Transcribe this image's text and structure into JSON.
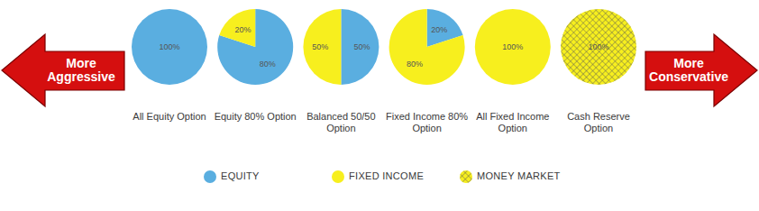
{
  "chart_data": [
    {
      "type": "pie",
      "title": "All Equity Option",
      "categories": [
        "EQUITY"
      ],
      "values": [
        100
      ],
      "value_labels": [
        "100%"
      ],
      "colors": [
        "#5aaee0"
      ],
      "data_labels": true
    },
    {
      "type": "pie",
      "title": "Equity 80% Option",
      "categories": [
        "EQUITY",
        "FIXED INCOME"
      ],
      "values": [
        80,
        20
      ],
      "value_labels": [
        "80%",
        "20%"
      ],
      "colors": [
        "#5aaee0",
        "#f7ef1e"
      ],
      "data_labels": true
    },
    {
      "type": "pie",
      "title": "Balanced 50/50 Option",
      "categories": [
        "EQUITY",
        "FIXED INCOME"
      ],
      "values": [
        50,
        50
      ],
      "value_labels": [
        "50%",
        "50%"
      ],
      "colors": [
        "#5aaee0",
        "#f7ef1e"
      ],
      "data_labels": true
    },
    {
      "type": "pie",
      "title": "Fixed Income 80% Option",
      "categories": [
        "EQUITY",
        "FIXED INCOME"
      ],
      "values": [
        20,
        80
      ],
      "value_labels": [
        "20%",
        "80%"
      ],
      "colors": [
        "#5aaee0",
        "#f7ef1e"
      ],
      "data_labels": true
    },
    {
      "type": "pie",
      "title": "All Fixed Income Option",
      "categories": [
        "FIXED INCOME"
      ],
      "values": [
        100
      ],
      "value_labels": [
        "100%"
      ],
      "colors": [
        "#f7ef1e"
      ],
      "data_labels": true
    },
    {
      "type": "pie",
      "title": "Cash Reserve Option",
      "categories": [
        "MONEY MARKET"
      ],
      "values": [
        100
      ],
      "value_labels": [
        "100%"
      ],
      "colors": [
        "#f7ef1e"
      ],
      "data_labels": true
    }
  ],
  "annotations": {
    "left_arrow": "More Aggressive",
    "right_arrow": "More Conservative"
  },
  "legend_items": [
    {
      "name": "EQUITY",
      "color": "#5aaee0"
    },
    {
      "name": "FIXED INCOME",
      "color": "#f7ef1e"
    },
    {
      "name": "MONEY MARKET",
      "color": "#f7ef1e",
      "marker": "crosshatch"
    }
  ]
}
